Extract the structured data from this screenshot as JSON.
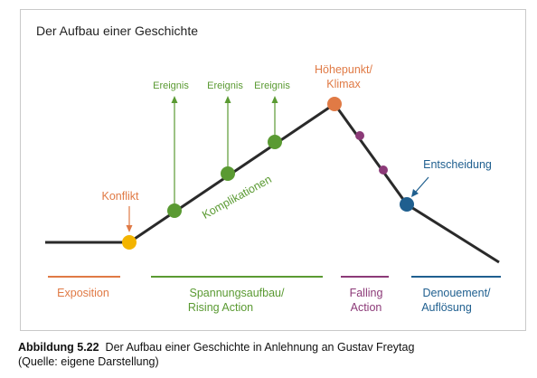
{
  "title": "Der Aufbau einer Geschichte",
  "points": {
    "ereignis1": "Ereignis",
    "ereignis2": "Ereignis",
    "ereignis3": "Ereignis",
    "hoehepunkt_line1": "Höhepunkt/",
    "hoehepunkt_line2": "Klimax",
    "konflikt": "Konflikt",
    "komplikationen": "Komplikationen",
    "entscheidung": "Entscheidung"
  },
  "phases": {
    "exposition": "Exposition",
    "rising_line1": "Spannungsaufbau/",
    "rising_line2": "Rising Action",
    "falling_line1": "Falling",
    "falling_line2": "Action",
    "denouement_line1": "Denouement/",
    "denouement_line2": "Auflösung"
  },
  "caption": {
    "label": "Abbildung 5.22",
    "text": "Der Aufbau einer Geschichte in Anlehnung an Gustav Freytag",
    "source": "(Quelle: eigene Darstellung)"
  },
  "colors": {
    "orange": "#e07a45",
    "green": "#5a9a32",
    "purple": "#8c3a78",
    "blue": "#1f5f8f",
    "yellow": "#f3b400",
    "line": "#2a2a2a"
  }
}
